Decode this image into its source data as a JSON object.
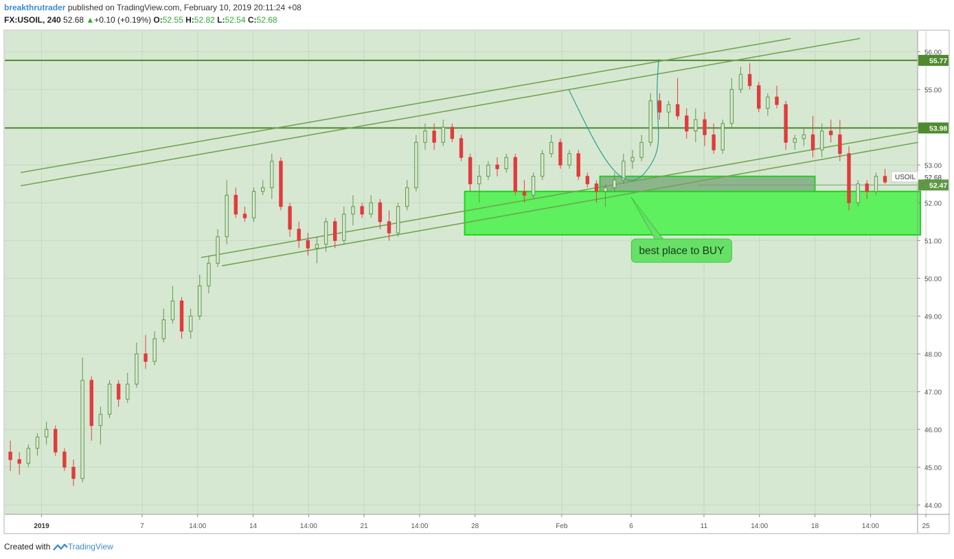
{
  "header": {
    "author": "breakthrutrader",
    "published_text": " published on TradingView.com, February 10, 2019 20:11:24 +08",
    "symbol": "FX:USOIL, 240",
    "last": "52.68",
    "change": "+0.10 (+0.19%)",
    "o_label": "O:",
    "o_value": "52.55",
    "h_label": "H:",
    "h_value": "52.82",
    "l_label": "L:",
    "l_value": "52.54",
    "c_label": "C:",
    "c_value": "52.68"
  },
  "footer": {
    "created_with": "Created with",
    "brand": "TradingView"
  },
  "chart_data": {
    "type": "candlestick",
    "symbol": "USOIL",
    "ylim": [
      43.7,
      56.2
    ],
    "y_ticks": [
      "56.00",
      "55.00",
      "54.00",
      "53.00",
      "52.00",
      "51.00",
      "50.00",
      "49.00",
      "48.00",
      "47.00",
      "46.00",
      "45.00",
      "44.00"
    ],
    "x_ticks": [
      {
        "label": "2019",
        "x": 0.5,
        "bold": true
      },
      {
        "label": "7",
        "x": 15
      },
      {
        "label": "14:00",
        "x": 23
      },
      {
        "label": "14",
        "x": 31
      },
      {
        "label": "14:00",
        "x": 39
      },
      {
        "label": "21",
        "x": 47
      },
      {
        "label": "14:00",
        "x": 55
      },
      {
        "label": "28",
        "x": 63
      },
      {
        "label": "Feb",
        "x": 75.5
      },
      {
        "label": "6",
        "x": 85.5
      },
      {
        "label": "11",
        "x": 96
      },
      {
        "label": "14:00",
        "x": 104
      },
      {
        "label": "18",
        "x": 112
      },
      {
        "label": "14:00",
        "x": 120
      },
      {
        "label": "25",
        "x": 128
      }
    ],
    "xlim": [
      -4.8,
      126.8
    ],
    "horizontal_levels": [
      {
        "value": 55.77,
        "label": "55.77",
        "color": "#4f8a2f"
      },
      {
        "value": 53.98,
        "label": "53.98",
        "color": "#4f8a2f"
      }
    ],
    "price_tags": [
      {
        "name": "USOIL",
        "value": "52.68",
        "price": 52.68
      },
      {
        "name": "",
        "value": "52.47",
        "price": 52.47
      }
    ],
    "zones": [
      {
        "x0": 61.5,
        "x1": 127.2,
        "y0": 51.15,
        "y1": 52.3,
        "fill": "#5ef05e",
        "stroke": "#1fd11f"
      },
      {
        "x0": 81,
        "x1": 112,
        "y0": 52.3,
        "y1": 52.7,
        "fill": "#8db58d",
        "stroke": "#1fd11f"
      }
    ],
    "trendlines": [
      {
        "x0": -2.5,
        "y0": 52.8,
        "x1": 108.5,
        "y1": 56.35
      },
      {
        "x0": -2.5,
        "y0": 52.45,
        "x1": 118.5,
        "y1": 56.35
      },
      {
        "x0": 23.5,
        "y0": 50.55,
        "x1": 126.9,
        "y1": 53.9
      },
      {
        "x0": 26.5,
        "y0": 50.33,
        "x1": 126.9,
        "y1": 53.6
      }
    ],
    "curve": {
      "points": [
        [
          76.5,
          55.0
        ],
        [
          80.5,
          53.5
        ],
        [
          84,
          52.4
        ],
        [
          87.5,
          52.8
        ],
        [
          88.5,
          54.0
        ],
        [
          89.5,
          55.8
        ]
      ]
    },
    "callout": {
      "text": "best place to BUY",
      "x_anchor": 85.5,
      "y_anchor": 52.15,
      "x": 90.5,
      "y": 50.75
    },
    "candles": [
      [
        45.4,
        45.7,
        44.9,
        45.2
      ],
      [
        45.2,
        45.4,
        44.8,
        45.1
      ],
      [
        45.1,
        45.6,
        45.0,
        45.5
      ],
      [
        45.5,
        45.9,
        45.3,
        45.8
      ],
      [
        45.8,
        46.2,
        45.6,
        46.0
      ],
      [
        46.0,
        46.1,
        45.3,
        45.4
      ],
      [
        45.4,
        45.5,
        44.9,
        45.0
      ],
      [
        45.0,
        45.2,
        44.5,
        44.7
      ],
      [
        44.7,
        47.9,
        44.6,
        47.3
      ],
      [
        47.3,
        47.4,
        45.7,
        46.1
      ],
      [
        46.1,
        46.6,
        45.6,
        46.4
      ],
      [
        46.4,
        47.3,
        46.3,
        47.2
      ],
      [
        47.2,
        47.3,
        46.6,
        46.8
      ],
      [
        46.8,
        47.5,
        46.7,
        47.2
      ],
      [
        47.2,
        48.3,
        47.1,
        48.0
      ],
      [
        48.0,
        48.5,
        47.6,
        47.8
      ],
      [
        47.8,
        48.6,
        47.7,
        48.4
      ],
      [
        48.4,
        49.2,
        48.3,
        48.9
      ],
      [
        48.9,
        49.8,
        48.8,
        49.4
      ],
      [
        49.4,
        49.5,
        48.4,
        48.6
      ],
      [
        48.6,
        49.2,
        48.4,
        49.0
      ],
      [
        49.0,
        50.1,
        48.9,
        49.8
      ],
      [
        49.8,
        50.6,
        49.6,
        50.4
      ],
      [
        50.4,
        51.3,
        50.3,
        51.1
      ],
      [
        51.1,
        52.6,
        50.9,
        52.2
      ],
      [
        52.2,
        52.4,
        51.6,
        51.7
      ],
      [
        51.7,
        51.9,
        51.5,
        51.6
      ],
      [
        51.6,
        52.4,
        51.5,
        52.3
      ],
      [
        52.3,
        52.6,
        52.2,
        52.4
      ],
      [
        52.4,
        53.3,
        52.1,
        53.1
      ],
      [
        53.1,
        53.2,
        51.8,
        51.9
      ],
      [
        51.9,
        52.0,
        51.1,
        51.3
      ],
      [
        51.3,
        51.5,
        50.8,
        51.0
      ],
      [
        51.0,
        51.2,
        50.6,
        50.8
      ],
      [
        50.8,
        51.1,
        50.4,
        50.9
      ],
      [
        50.9,
        51.6,
        50.7,
        51.5
      ],
      [
        51.5,
        51.6,
        50.8,
        51.0
      ],
      [
        51.0,
        51.9,
        50.9,
        51.7
      ],
      [
        51.7,
        52.2,
        51.4,
        51.9
      ],
      [
        51.9,
        52.0,
        51.6,
        51.7
      ],
      [
        51.7,
        52.2,
        51.6,
        52.0
      ],
      [
        52.0,
        52.1,
        51.3,
        51.5
      ],
      [
        51.5,
        51.8,
        51.0,
        51.2
      ],
      [
        51.2,
        52.0,
        51.1,
        51.9
      ],
      [
        51.9,
        52.6,
        51.8,
        52.4
      ],
      [
        52.4,
        53.8,
        52.3,
        53.6
      ],
      [
        53.6,
        54.1,
        53.4,
        53.9
      ],
      [
        53.9,
        54.1,
        53.4,
        53.6
      ],
      [
        53.6,
        54.2,
        53.5,
        54.0
      ],
      [
        54.0,
        54.1,
        53.6,
        53.7
      ],
      [
        53.7,
        53.8,
        53.1,
        53.2
      ],
      [
        53.2,
        53.3,
        52.3,
        52.5
      ],
      [
        52.5,
        53.0,
        52.0,
        52.7
      ],
      [
        52.7,
        53.1,
        52.6,
        53.0
      ],
      [
        53.0,
        53.2,
        52.7,
        52.9
      ],
      [
        52.9,
        53.3,
        52.8,
        53.2
      ],
      [
        53.2,
        53.3,
        52.2,
        52.3
      ],
      [
        52.3,
        52.6,
        52.0,
        52.2
      ],
      [
        52.2,
        52.8,
        52.1,
        52.7
      ],
      [
        52.7,
        53.4,
        52.6,
        53.3
      ],
      [
        53.3,
        53.8,
        53.2,
        53.6
      ],
      [
        53.6,
        53.7,
        52.9,
        53.0
      ],
      [
        53.0,
        53.4,
        52.9,
        53.3
      ],
      [
        53.3,
        53.4,
        52.6,
        52.7
      ],
      [
        52.7,
        52.8,
        52.4,
        52.5
      ],
      [
        52.5,
        52.6,
        52.0,
        52.3
      ],
      [
        52.3,
        52.5,
        51.9,
        52.4
      ],
      [
        52.4,
        52.8,
        52.3,
        52.6
      ],
      [
        52.6,
        53.3,
        52.5,
        53.1
      ],
      [
        53.1,
        53.4,
        52.9,
        53.2
      ],
      [
        53.2,
        53.8,
        53.1,
        53.6
      ],
      [
        53.6,
        54.9,
        53.5,
        54.7
      ],
      [
        54.7,
        54.9,
        54.2,
        54.4
      ],
      [
        54.4,
        54.7,
        54.0,
        54.6
      ],
      [
        54.6,
        55.3,
        54.2,
        54.3
      ],
      [
        54.3,
        54.5,
        53.7,
        53.9
      ],
      [
        53.9,
        54.5,
        53.6,
        54.2
      ],
      [
        54.2,
        54.4,
        53.5,
        53.8
      ],
      [
        53.8,
        54.1,
        53.3,
        53.4
      ],
      [
        53.4,
        54.2,
        53.3,
        54.1
      ],
      [
        54.1,
        55.3,
        54.0,
        55.0
      ],
      [
        55.0,
        55.6,
        54.9,
        55.4
      ],
      [
        55.4,
        55.7,
        55.0,
        55.1
      ],
      [
        55.1,
        55.2,
        54.4,
        54.5
      ],
      [
        54.5,
        54.9,
        54.3,
        54.8
      ],
      [
        54.8,
        55.1,
        54.5,
        54.6
      ],
      [
        54.6,
        54.7,
        53.4,
        53.6
      ],
      [
        53.6,
        53.8,
        53.4,
        53.7
      ],
      [
        53.7,
        54.0,
        53.5,
        53.8
      ],
      [
        53.8,
        54.3,
        53.2,
        53.4
      ],
      [
        53.4,
        54.1,
        53.2,
        53.9
      ],
      [
        53.9,
        54.2,
        53.6,
        53.8
      ],
      [
        53.8,
        54.2,
        53.1,
        53.3
      ],
      [
        53.3,
        53.5,
        51.8,
        52.0
      ],
      [
        52.0,
        52.6,
        51.9,
        52.5
      ],
      [
        52.5,
        52.6,
        52.1,
        52.3
      ],
      [
        52.3,
        52.8,
        52.2,
        52.7
      ],
      [
        52.7,
        52.9,
        52.5,
        52.55
      ],
      [
        52.55,
        52.82,
        52.54,
        52.68
      ]
    ]
  }
}
